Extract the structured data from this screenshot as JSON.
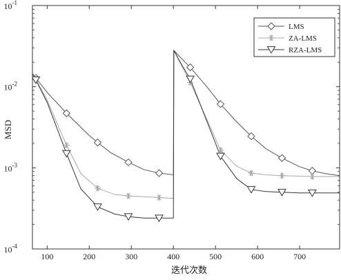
{
  "chart_data": {
    "type": "line",
    "xlabel": "迭代次数",
    "ylabel": "MSD",
    "xlim": [
      65,
      795
    ],
    "ylim": [
      0.0001,
      0.1
    ],
    "yscale": "log",
    "xticks": [
      100,
      200,
      300,
      400,
      500,
      600,
      700
    ],
    "yticks": [
      {
        "value": 0.1,
        "base": "10",
        "exp": "-1"
      },
      {
        "value": 0.01,
        "base": "10",
        "exp": "-2"
      },
      {
        "value": 0.001,
        "base": "10",
        "exp": "-3"
      },
      {
        "value": 0.0001,
        "base": "10",
        "exp": "-4"
      }
    ],
    "grid": false,
    "legend_position": "top-right",
    "series": [
      {
        "name": "LMS",
        "marker": "diamond",
        "color": "#555555",
        "x": [
          65,
          73,
          100,
          146,
          200,
          220,
          250,
          293,
          330,
          366,
          400,
          401,
          420,
          440,
          480,
          512,
          550,
          585,
          620,
          658,
          700,
          730,
          760,
          795
        ],
        "y": [
          0.0145,
          0.0128,
          0.0085,
          0.0047,
          0.0025,
          0.00205,
          0.00155,
          0.00117,
          0.00095,
          0.00086,
          0.00082,
          0.028,
          0.022,
          0.0173,
          0.0099,
          0.0061,
          0.0037,
          0.00245,
          0.00172,
          0.00132,
          0.00103,
          0.00092,
          0.00085,
          0.0008
        ]
      },
      {
        "name": "ZA-LMS",
        "marker": "asterisk",
        "color": "#a8a8a8",
        "x": [
          65,
          73,
          100,
          146,
          180,
          220,
          260,
          293,
          330,
          366,
          400,
          401,
          420,
          440,
          480,
          512,
          550,
          585,
          620,
          658,
          700,
          730,
          760,
          795
        ],
        "y": [
          0.0145,
          0.0124,
          0.0068,
          0.0019,
          0.00085,
          0.00056,
          0.00047,
          0.00045,
          0.00044,
          0.00043,
          0.00042,
          0.028,
          0.018,
          0.0113,
          0.0039,
          0.00165,
          0.00105,
          0.00086,
          0.00082,
          0.0008,
          0.00079,
          0.00078,
          0.00078,
          0.00078
        ]
      },
      {
        "name": "RZA-LMS",
        "marker": "triangle-down",
        "color": "#333333",
        "x": [
          65,
          73,
          100,
          146,
          180,
          220,
          260,
          293,
          330,
          366,
          400,
          401,
          420,
          440,
          480,
          512,
          550,
          585,
          620,
          658,
          700,
          730,
          760,
          795
        ],
        "y": [
          0.0145,
          0.0121,
          0.0064,
          0.0015,
          0.00055,
          0.00033,
          0.00027,
          0.00025,
          0.00024,
          0.00024,
          0.00024,
          0.028,
          0.0185,
          0.0124,
          0.0037,
          0.00139,
          0.00074,
          0.00054,
          0.00051,
          0.0005,
          0.00049,
          0.00049,
          0.00049,
          0.00049
        ]
      }
    ]
  }
}
